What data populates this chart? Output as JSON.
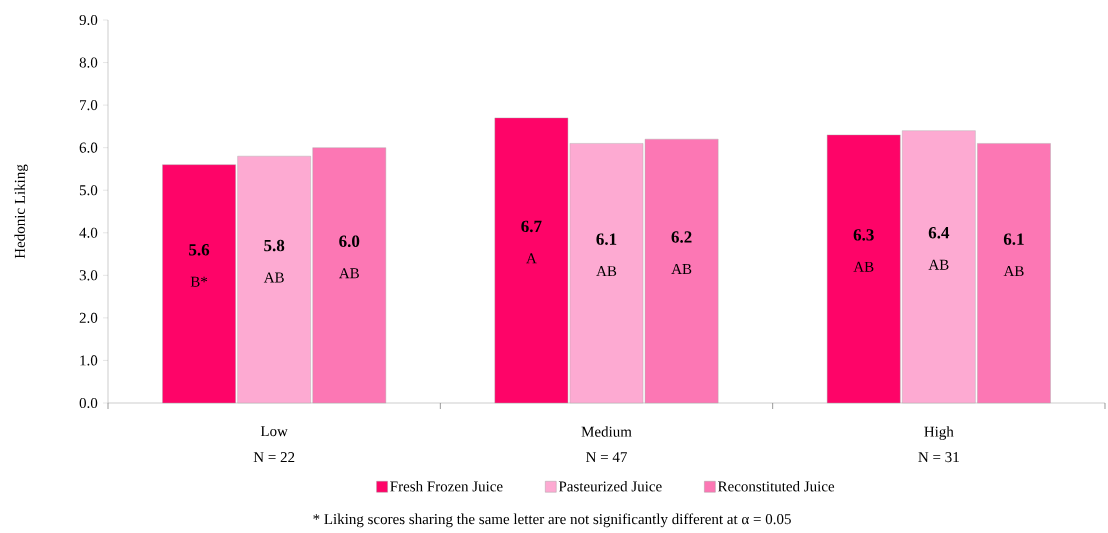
{
  "chart_data": {
    "type": "bar",
    "ylabel": "Hedonic Liking",
    "categories": [
      "Low",
      "Medium",
      "High"
    ],
    "series": [
      {
        "name": "Fresh Frozen Juice",
        "color": "#fe0468",
        "values": [
          5.6,
          6.7,
          6.3
        ],
        "value_labels": [
          "5.6",
          "6.7",
          "6.3"
        ]
      },
      {
        "name": "Pasteurized Juice",
        "color": "#fdaad2",
        "values": [
          5.8,
          6.1,
          6.4
        ],
        "value_labels": [
          "5.8",
          "6.1",
          "6.4"
        ]
      },
      {
        "name": "Reconstituted Juice",
        "color": "#fc77b4",
        "values": [
          6.0,
          6.2,
          6.1
        ],
        "value_labels": [
          "6.0",
          "6.2",
          "6.1"
        ]
      }
    ],
    "ylim": [
      0,
      9
    ],
    "yticks": [
      {
        "value": 0,
        "label": "0.0"
      },
      {
        "value": 1,
        "label": "1.0"
      },
      {
        "value": 2,
        "label": "2.0"
      },
      {
        "value": 3,
        "label": "3.0"
      },
      {
        "value": 4,
        "label": "4.0"
      },
      {
        "value": 5,
        "label": "5.0"
      },
      {
        "value": 6,
        "label": "6.0"
      },
      {
        "value": 7,
        "label": "7.0"
      },
      {
        "value": 8,
        "label": "8.0"
      },
      {
        "value": 9,
        "label": "9.0"
      }
    ],
    "grid": false,
    "legend": "bottom",
    "annotations": [
      "* Liking scores sharing the same letter are not significantly different at α = 0.05",
      "N = 22",
      "N = 47",
      "N = 31",
      "B*",
      "AB",
      "AB",
      "A",
      "AB",
      "AB",
      "AB",
      "AB",
      "AB"
    ]
  }
}
